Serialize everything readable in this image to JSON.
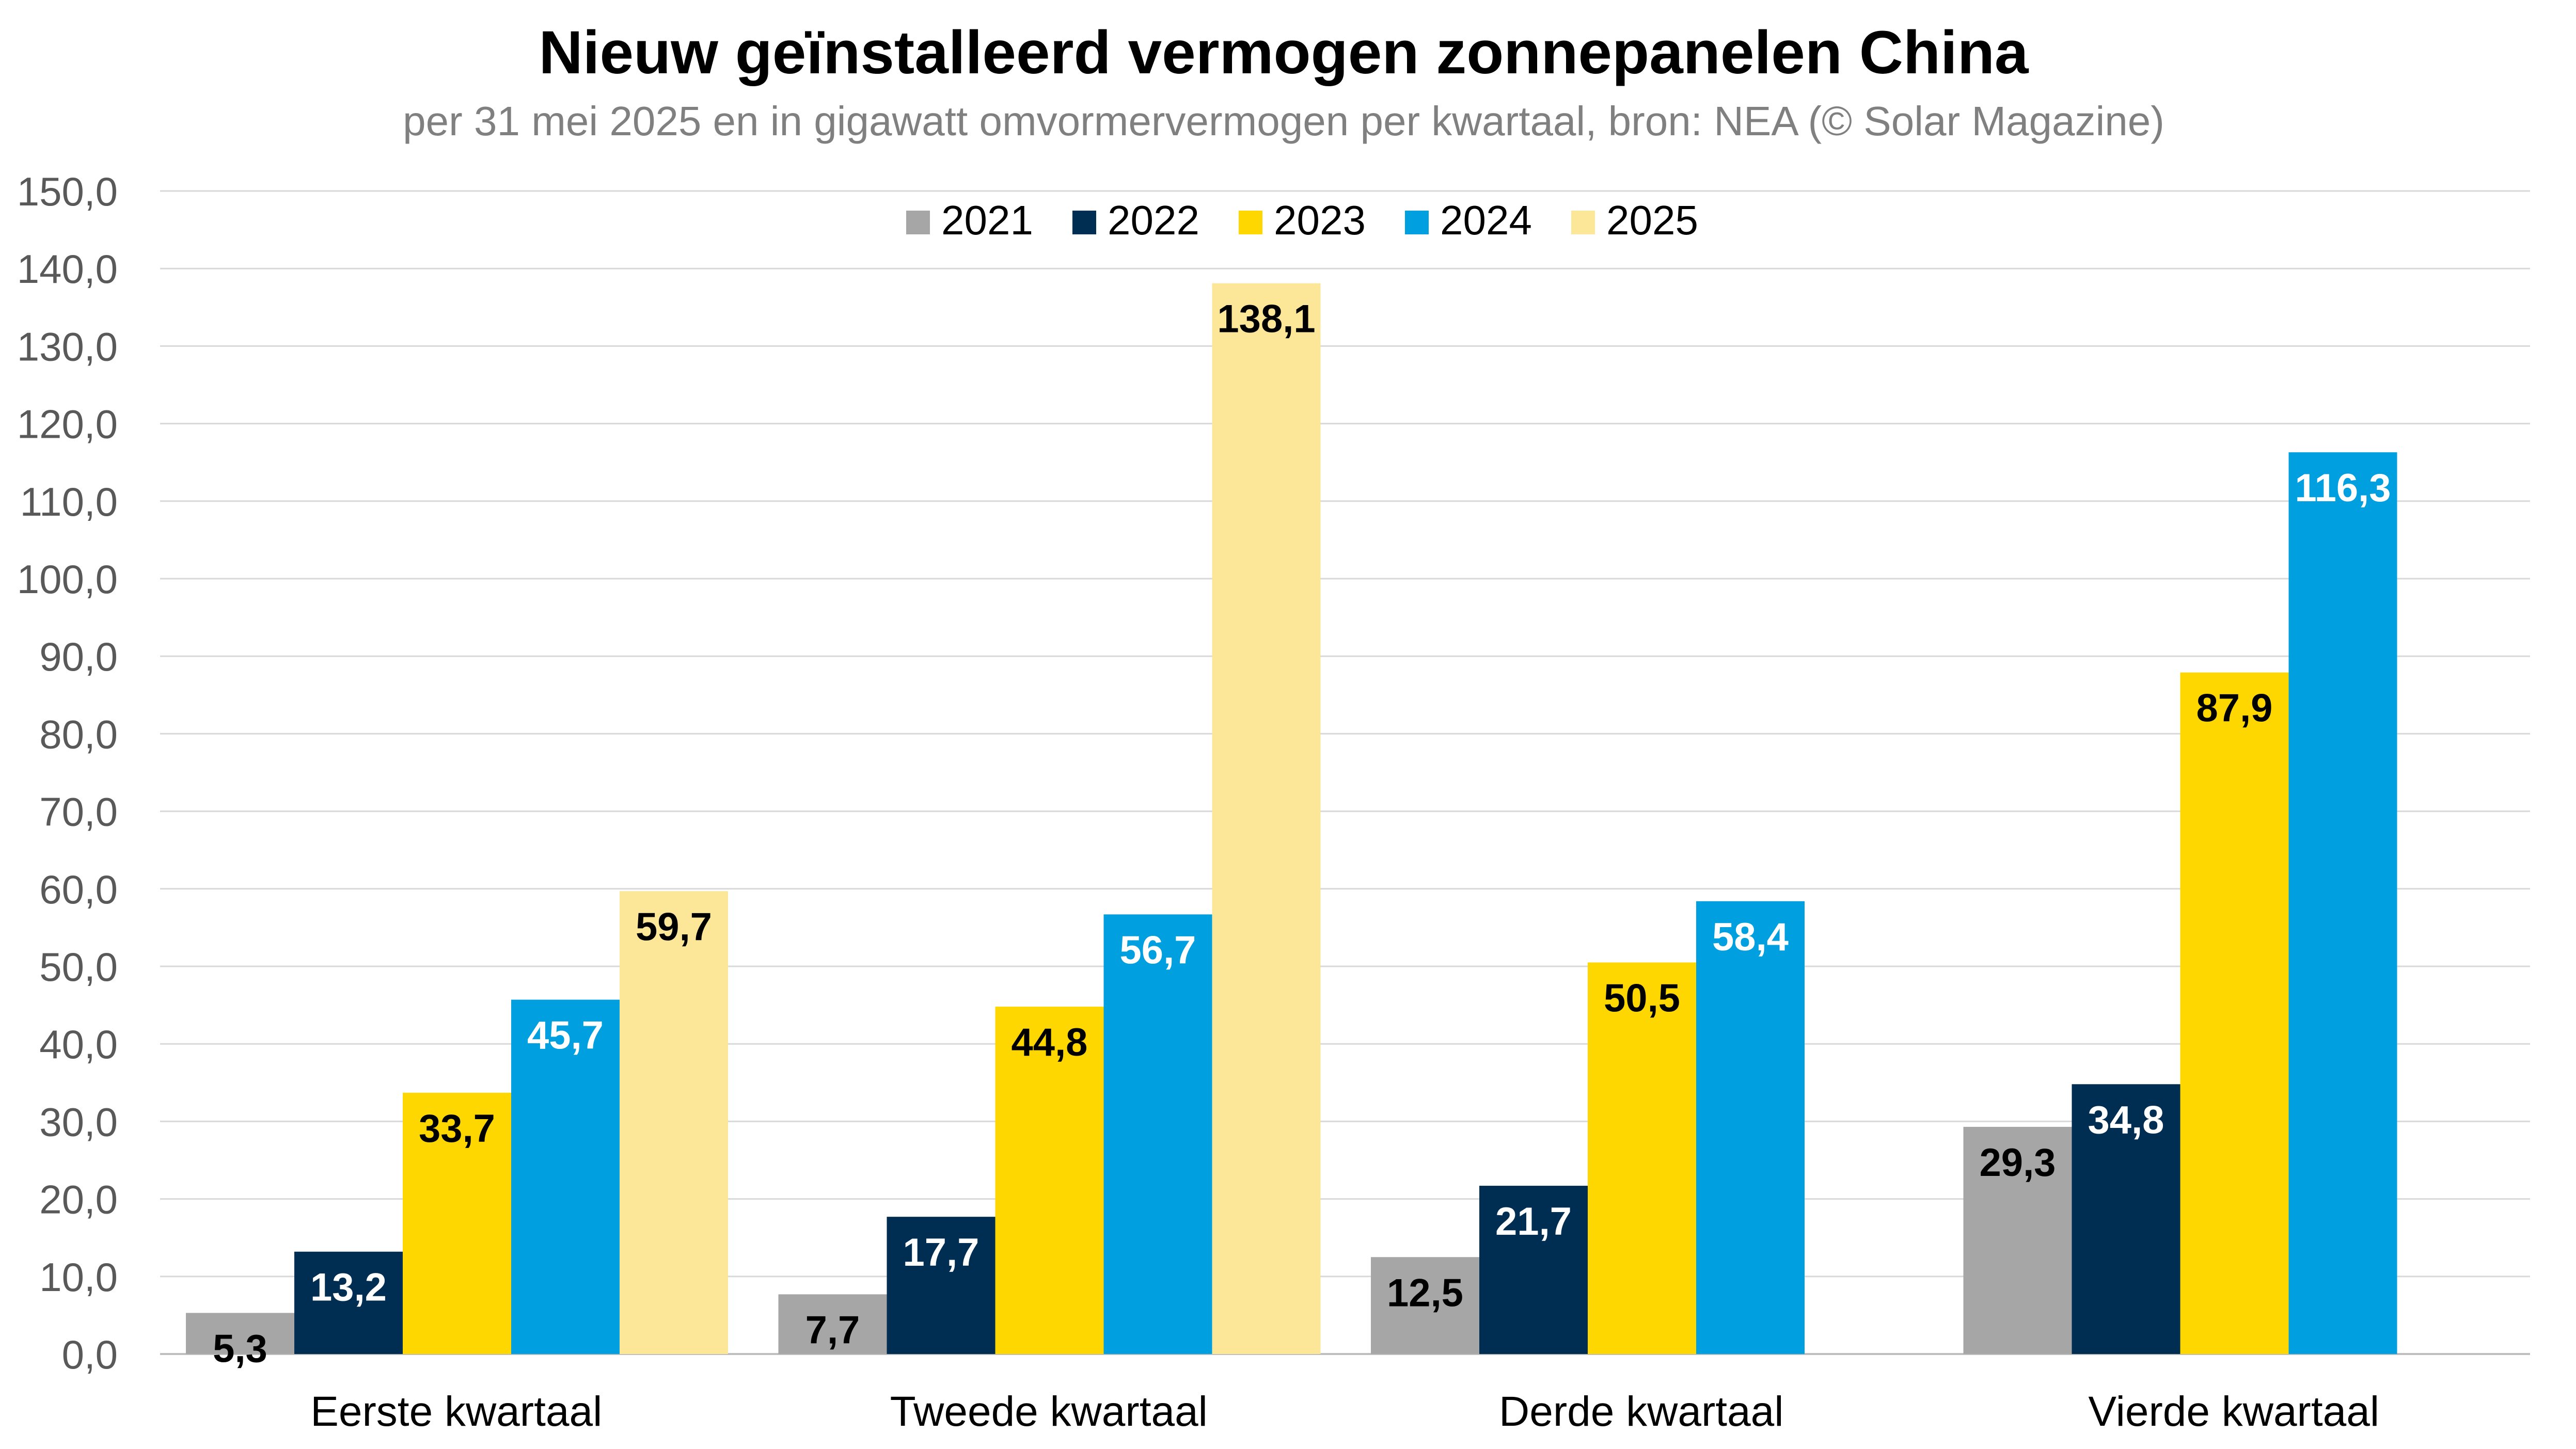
{
  "chart_data": {
    "type": "bar",
    "title": "Nieuw geïnstalleerd vermogen zonnepanelen China",
    "subtitle": "per 31 mei 2025 en in gigawatt omvormervermogen per kwartaal, bron: NEA (© Solar Magazine)",
    "xlabel": "",
    "ylabel": "",
    "ylim": [
      0,
      150
    ],
    "y_ticks": [
      "0,0",
      "10,0",
      "20,0",
      "30,0",
      "40,0",
      "50,0",
      "60,0",
      "70,0",
      "80,0",
      "90,0",
      "100,0",
      "110,0",
      "120,0",
      "130,0",
      "140,0",
      "150,0"
    ],
    "grid": true,
    "legend_position": "top-center",
    "categories": [
      "Eerste kwartaal",
      "Tweede kwartaal",
      "Derde kwartaal",
      "Vierde kwartaal"
    ],
    "series": [
      {
        "name": "2021",
        "color": "#A6A6A6",
        "label_color": "#000000",
        "values": [
          5.3,
          7.7,
          12.5,
          29.3
        ],
        "labels": [
          "5,3",
          "7,7",
          "12,5",
          "29,3"
        ]
      },
      {
        "name": "2022",
        "color": "#002D52",
        "label_color": "#FFFFFF",
        "values": [
          13.2,
          17.7,
          21.7,
          34.8
        ],
        "labels": [
          "13,2",
          "17,7",
          "21,7",
          "34,8"
        ]
      },
      {
        "name": "2023",
        "color": "#FFD700",
        "label_color": "#000000",
        "values": [
          33.7,
          44.8,
          50.5,
          87.9
        ],
        "labels": [
          "33,7",
          "44,8",
          "50,5",
          "87,9"
        ]
      },
      {
        "name": "2024",
        "color": "#009FE0",
        "label_color": "#FFFFFF",
        "values": [
          45.7,
          56.7,
          58.4,
          116.3
        ],
        "labels": [
          "45,7",
          "56,7",
          "58,4",
          "116,3"
        ]
      },
      {
        "name": "2025",
        "color": "#FCE698",
        "label_color": "#000000",
        "values": [
          59.7,
          138.1,
          null,
          null
        ],
        "labels": [
          "59,7",
          "138,1",
          null,
          null
        ]
      }
    ]
  }
}
